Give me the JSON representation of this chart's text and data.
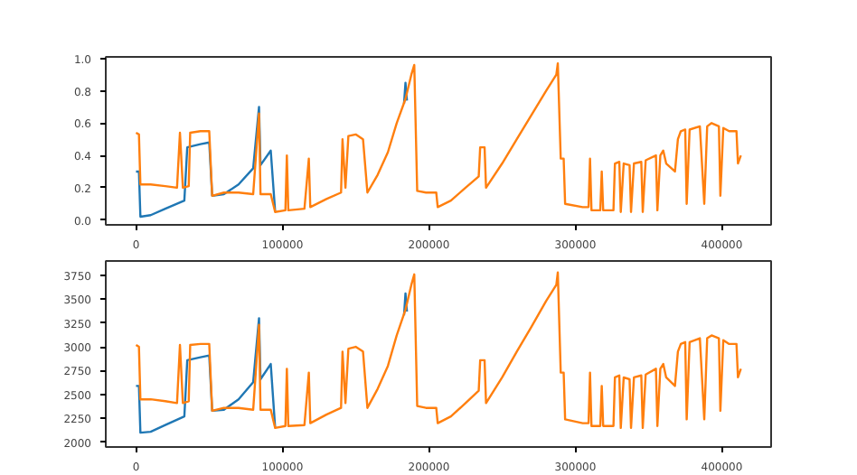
{
  "chart_data": [
    {
      "type": "line",
      "xlim": [
        -20650,
        433650
      ],
      "xticks": [
        0,
        100000,
        200000,
        300000,
        400000
      ],
      "ylim": [
        -0.03,
        1.01
      ],
      "yticks": [
        {
          "value": 0,
          "label": "0.0"
        },
        0.2,
        0.4,
        0.6,
        0.8,
        {
          "value": 1,
          "label": "1.0"
        }
      ],
      "series": [
        {
          "color": "#1f77b4",
          "x": [
            0,
            2000,
            3000,
            10000,
            20000,
            33000,
            35000,
            44000,
            50000,
            52000,
            60000,
            70000,
            80000,
            84000,
            85000,
            92000,
            95000,
            96000,
            183000,
            184000,
            185000
          ],
          "values": [
            0.3,
            0.3,
            0.02,
            0.03,
            0.07,
            0.12,
            0.45,
            0.47,
            0.48,
            0.15,
            0.16,
            0.22,
            0.32,
            0.7,
            0.34,
            0.43,
            0.05,
            null,
            0.72,
            0.85,
            0.74
          ]
        },
        {
          "color": "#ff7f0e",
          "x": [
            0,
            2000,
            3000,
            10000,
            20000,
            28000,
            30000,
            32000,
            36000,
            37000,
            44000,
            50000,
            52000,
            60000,
            70000,
            80000,
            84000,
            85000,
            92000,
            95000,
            102000,
            103000,
            104000,
            115000,
            118000,
            119000,
            130000,
            140000,
            141000,
            143000,
            145000,
            150000,
            155000,
            158000,
            165000,
            172000,
            178000,
            184000,
            188000,
            190000,
            192000,
            198000,
            205000,
            206000,
            215000,
            225000,
            234000,
            235000,
            238000,
            239000,
            250000,
            260000,
            270000,
            280000,
            287000,
            288000,
            290000,
            292000,
            293000,
            305000,
            309000,
            310000,
            311000,
            317000,
            318000,
            319000,
            326000,
            327000,
            330000,
            331000,
            333000,
            337000,
            338000,
            340000,
            345000,
            346000,
            348000,
            355000,
            356000,
            358000,
            360000,
            362000,
            368000,
            370000,
            372000,
            375000,
            376000,
            378000,
            385000,
            388000,
            390000,
            393000,
            398000,
            399000,
            401000,
            405000,
            410000,
            411000,
            413000
          ],
          "values": [
            0.54,
            0.53,
            0.22,
            0.22,
            0.21,
            0.2,
            0.54,
            0.2,
            0.21,
            0.54,
            0.55,
            0.55,
            0.15,
            0.17,
            0.17,
            0.16,
            0.66,
            0.16,
            0.16,
            0.05,
            0.06,
            0.4,
            0.06,
            0.07,
            0.38,
            0.08,
            0.13,
            0.17,
            0.5,
            0.2,
            0.52,
            0.53,
            0.5,
            0.17,
            0.28,
            0.42,
            0.6,
            0.75,
            0.9,
            0.96,
            0.18,
            0.17,
            0.17,
            0.08,
            0.12,
            0.2,
            0.27,
            0.45,
            0.45,
            0.2,
            0.35,
            0.5,
            0.65,
            0.8,
            0.9,
            0.97,
            0.38,
            0.38,
            0.1,
            0.08,
            0.08,
            0.38,
            0.06,
            0.06,
            0.3,
            0.06,
            0.06,
            0.35,
            0.36,
            0.05,
            0.35,
            0.34,
            0.05,
            0.35,
            0.36,
            0.05,
            0.37,
            0.4,
            0.06,
            0.4,
            0.43,
            0.35,
            0.3,
            0.5,
            0.55,
            0.56,
            0.1,
            0.56,
            0.58,
            0.1,
            0.58,
            0.6,
            0.58,
            0.15,
            0.57,
            0.55,
            0.55,
            0.35,
            0.4
          ]
        }
      ]
    },
    {
      "type": "line",
      "xlim": [
        -20650,
        433650
      ],
      "xticks": [
        0,
        100000,
        200000,
        300000,
        400000
      ],
      "ylim": [
        1950,
        3900
      ],
      "yticks": [
        2000,
        2250,
        2500,
        2750,
        3000,
        3250,
        3500,
        3750
      ],
      "series": [
        {
          "color": "#1f77b4",
          "x": [
            0,
            2000,
            3000,
            10000,
            20000,
            33000,
            35000,
            44000,
            50000,
            52000,
            60000,
            70000,
            80000,
            84000,
            85000,
            92000,
            95000,
            96000,
            183000,
            184000,
            185000
          ],
          "values": [
            2590,
            2590,
            2100,
            2110,
            2180,
            2270,
            2860,
            2890,
            2910,
            2330,
            2340,
            2450,
            2630,
            3300,
            2660,
            2820,
            2150,
            null,
            3330,
            3560,
            3370
          ]
        },
        {
          "color": "#ff7f0e",
          "x": [
            0,
            2000,
            3000,
            10000,
            20000,
            28000,
            30000,
            32000,
            36000,
            37000,
            44000,
            50000,
            52000,
            60000,
            70000,
            80000,
            84000,
            85000,
            92000,
            95000,
            102000,
            103000,
            104000,
            115000,
            118000,
            119000,
            130000,
            140000,
            141000,
            143000,
            145000,
            150000,
            155000,
            158000,
            165000,
            172000,
            178000,
            184000,
            188000,
            190000,
            192000,
            198000,
            205000,
            206000,
            215000,
            225000,
            234000,
            235000,
            238000,
            239000,
            250000,
            260000,
            270000,
            280000,
            287000,
            288000,
            290000,
            292000,
            293000,
            305000,
            309000,
            310000,
            311000,
            317000,
            318000,
            319000,
            326000,
            327000,
            330000,
            331000,
            333000,
            337000,
            338000,
            340000,
            345000,
            346000,
            348000,
            355000,
            356000,
            358000,
            360000,
            362000,
            368000,
            370000,
            372000,
            375000,
            376000,
            378000,
            385000,
            388000,
            390000,
            393000,
            398000,
            399000,
            401000,
            405000,
            410000,
            411000,
            413000
          ],
          "values": [
            3020,
            3000,
            2450,
            2450,
            2430,
            2410,
            3020,
            2410,
            2430,
            3020,
            3030,
            3030,
            2330,
            2360,
            2360,
            2340,
            3230,
            2340,
            2340,
            2150,
            2170,
            2770,
            2170,
            2180,
            2730,
            2200,
            2290,
            2360,
            2950,
            2410,
            2980,
            3000,
            2950,
            2360,
            2560,
            2800,
            3120,
            3390,
            3650,
            3760,
            2380,
            2360,
            2360,
            2200,
            2270,
            2410,
            2540,
            2860,
            2860,
            2410,
            2680,
            2950,
            3210,
            3480,
            3650,
            3780,
            2730,
            2730,
            2240,
            2200,
            2200,
            2730,
            2170,
            2170,
            2590,
            2170,
            2170,
            2680,
            2700,
            2150,
            2680,
            2660,
            2150,
            2680,
            2700,
            2150,
            2710,
            2770,
            2170,
            2770,
            2820,
            2680,
            2590,
            2950,
            3030,
            3050,
            2240,
            3050,
            3090,
            2240,
            3090,
            3120,
            3090,
            2330,
            3070,
            3030,
            3030,
            2680,
            2770
          ]
        }
      ]
    }
  ]
}
